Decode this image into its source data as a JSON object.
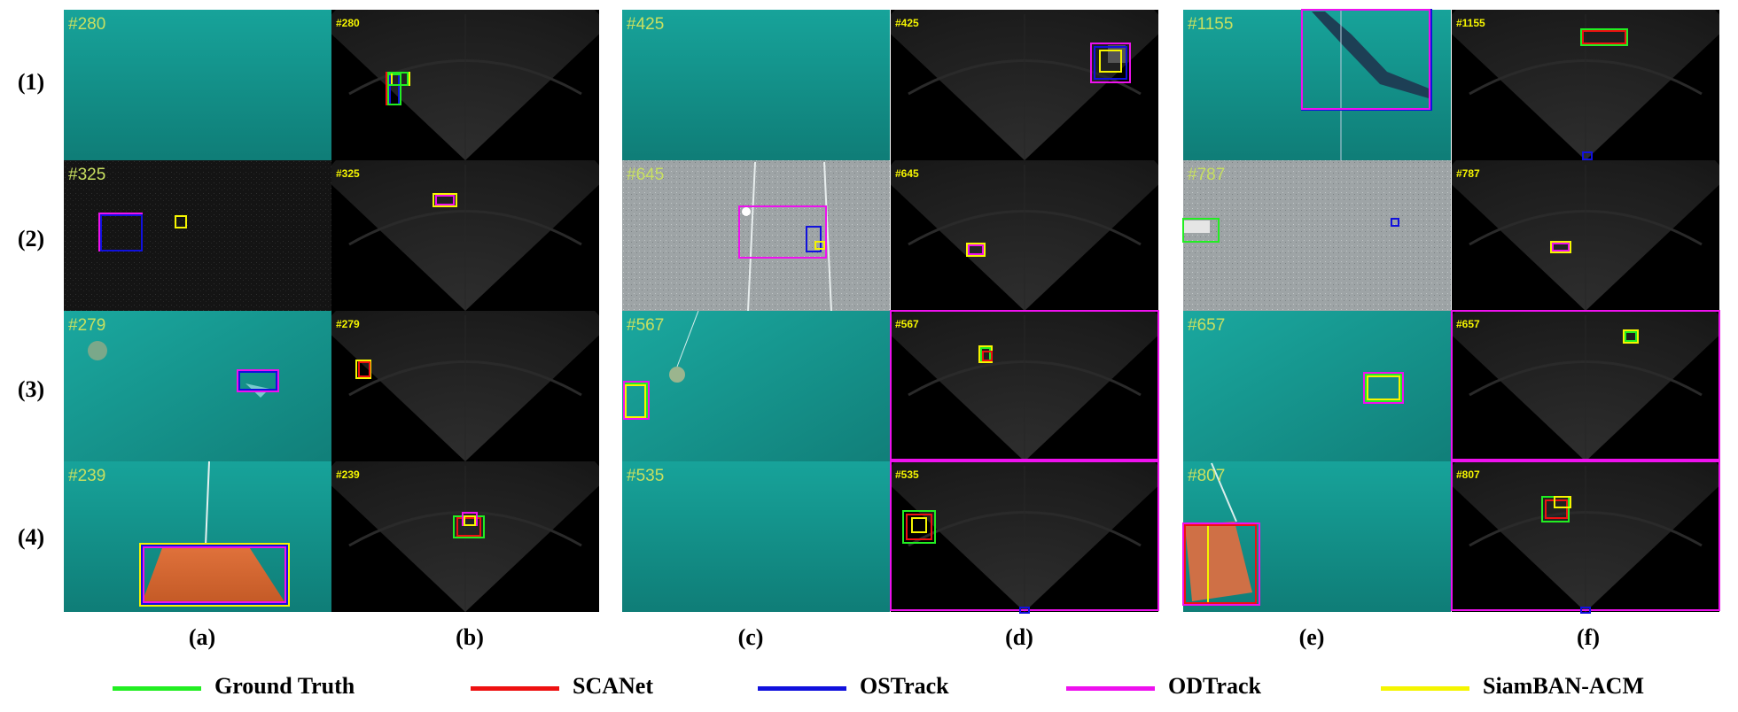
{
  "row_labels": [
    "(1)",
    "(2)",
    "(3)",
    "(4)"
  ],
  "column_labels": [
    "(a)",
    "(b)",
    "(c)",
    "(d)",
    "(e)",
    "(f)"
  ],
  "frames": {
    "a": [
      "#280",
      "#325",
      "#279",
      "#239"
    ],
    "b": [
      "#280",
      "#325",
      "#279",
      "#239"
    ],
    "c": [
      "#425",
      "#645",
      "#567",
      "#535"
    ],
    "d": [
      "#425",
      "#645",
      "#567",
      "#535"
    ],
    "e": [
      "#1155",
      "#787",
      "#657",
      "#807"
    ],
    "f": [
      "#1155",
      "#787",
      "#657",
      "#807"
    ]
  },
  "legend": [
    {
      "label": "Ground Truth",
      "color": "#22ee22"
    },
    {
      "label": "SCANet",
      "color": "#ee1111"
    },
    {
      "label": "OSTrack",
      "color": "#1111dd"
    },
    {
      "label": "ODTrack",
      "color": "#ee11ee"
    },
    {
      "label": "SiamBAN-ACM",
      "color": "#f5f500"
    }
  ]
}
